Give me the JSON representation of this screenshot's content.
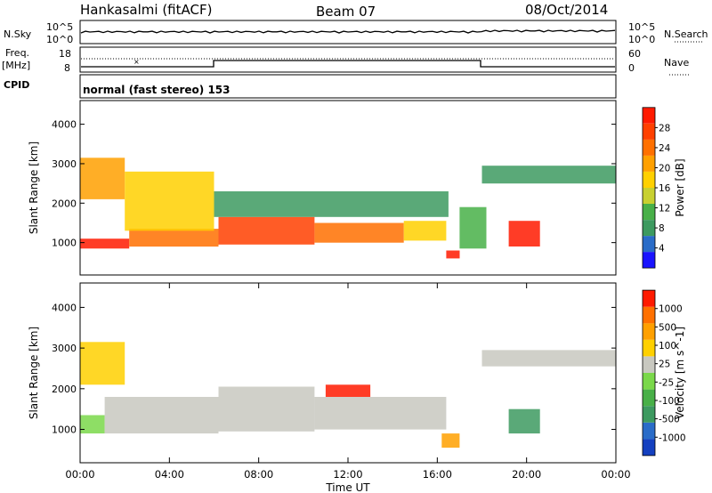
{
  "header": {
    "station": "Hankasalmi (fitACF)",
    "beam": "Beam 07",
    "date": "08/Oct/2014"
  },
  "noise_panel": {
    "left_label": "N.Sky",
    "left_ticks": [
      "10^5",
      "10^0"
    ],
    "right_ticks": [
      "10^5",
      "10^0"
    ],
    "right_label": "N.Search"
  },
  "freq_panel": {
    "left_label_1": "Freq.",
    "left_label_2": "[MHz]",
    "left_ticks": [
      "18",
      "8"
    ],
    "right_ticks": [
      "60",
      "0"
    ],
    "right_label": "Nave"
  },
  "cpid_panel": {
    "label": "CPID",
    "mode_text": "normal (fast stereo) 153"
  },
  "chart_data": [
    {
      "type": "heatmap",
      "name": "power",
      "ylabel": "Slant Range [km]",
      "ylim": [
        180,
        4600
      ],
      "y_ticks": [
        1000,
        2000,
        3000,
        4000
      ],
      "xlim": [
        0,
        24
      ],
      "colorbar": {
        "label": "Power [dB]",
        "ticks": [
          "4",
          "8",
          "12",
          "16",
          "20",
          "24",
          "28"
        ],
        "colors": [
          "#1a14ff",
          "#2a6cc8",
          "#3d9a60",
          "#48b048",
          "#c8d030",
          "#ffd000",
          "#ffa000",
          "#ff7000",
          "#ff4000",
          "#ff1a00"
        ]
      },
      "bands": [
        {
          "t0": 0,
          "t1": 2.2,
          "r0": 850,
          "r1": 1100,
          "level": 9
        },
        {
          "t0": 2.2,
          "t1": 6.2,
          "r0": 900,
          "r1": 1350,
          "level": 7
        },
        {
          "t0": 6.2,
          "t1": 10.5,
          "r0": 950,
          "r1": 1650,
          "level": 8
        },
        {
          "t0": 10.5,
          "t1": 14.5,
          "r0": 1000,
          "r1": 1500,
          "level": 7
        },
        {
          "t0": 14.5,
          "t1": 16.4,
          "r0": 1050,
          "r1": 1550,
          "level": 5
        },
        {
          "t0": 16.4,
          "t1": 17.0,
          "r0": 600,
          "r1": 800,
          "level": 9
        },
        {
          "t0": 17.0,
          "t1": 18.2,
          "r0": 850,
          "r1": 1900,
          "level": 3
        },
        {
          "t0": 19.2,
          "t1": 20.6,
          "r0": 900,
          "r1": 1550,
          "level": 9
        },
        {
          "t0": 18.0,
          "t1": 24.0,
          "r0": 2500,
          "r1": 2950,
          "level": 2
        },
        {
          "t0": 0,
          "t1": 2.0,
          "r0": 2100,
          "r1": 3150,
          "level": 6
        },
        {
          "t0": 2.0,
          "t1": 6.0,
          "r0": 1300,
          "r1": 2800,
          "level": 5
        },
        {
          "t0": 6.0,
          "t1": 16.5,
          "r0": 1650,
          "r1": 2300,
          "level": 2
        }
      ]
    },
    {
      "type": "heatmap",
      "name": "velocity",
      "ylabel": "Slant Range [km]",
      "xlabel": "Time UT",
      "ylim": [
        180,
        4600
      ],
      "y_ticks": [
        1000,
        2000,
        3000,
        4000
      ],
      "xlim": [
        0,
        24
      ],
      "x_ticks": [
        "00:00",
        "04:00",
        "08:00",
        "12:00",
        "16:00",
        "20:00",
        "00:00"
      ],
      "colorbar": {
        "label": "Velocity [m s^-1]",
        "ticks": [
          "1000",
          "500",
          "100",
          "25",
          "-25",
          "-100",
          "-500",
          "-1000"
        ],
        "colors": [
          "#1440c0",
          "#2a6cc8",
          "#3d9a60",
          "#48b048",
          "#7ad84a",
          "#c8c8c0",
          "#ffd000",
          "#ffa000",
          "#ff7000",
          "#ff1a00"
        ]
      },
      "bands": [
        {
          "t0": 0,
          "t1": 1.1,
          "r0": 900,
          "r1": 1350,
          "level": 4
        },
        {
          "t0": 1.1,
          "t1": 6.2,
          "r0": 900,
          "r1": 1800,
          "level": 5
        },
        {
          "t0": 6.2,
          "t1": 10.5,
          "r0": 950,
          "r1": 2050,
          "level": 5
        },
        {
          "t0": 10.5,
          "t1": 16.4,
          "r0": 1000,
          "r1": 1800,
          "level": 5
        },
        {
          "t0": 18.0,
          "t1": 24.0,
          "r0": 2550,
          "r1": 2950,
          "level": 5
        },
        {
          "t0": 19.2,
          "t1": 20.6,
          "r0": 900,
          "r1": 1500,
          "level": 2
        },
        {
          "t0": 16.2,
          "t1": 17.0,
          "r0": 550,
          "r1": 900,
          "level": 7
        },
        {
          "t0": 11.0,
          "t1": 13.0,
          "r0": 1800,
          "r1": 2100,
          "level": 9
        },
        {
          "t0": 0,
          "t1": 2.0,
          "r0": 2100,
          "r1": 3150,
          "level": 6
        }
      ]
    }
  ]
}
